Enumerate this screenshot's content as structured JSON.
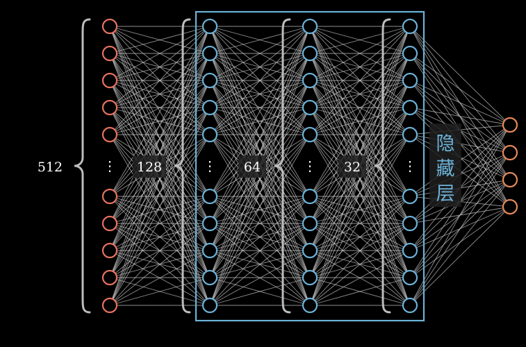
{
  "diagram": {
    "input_layer_size_label": "512",
    "hidden_layer_labels": [
      "128",
      "64",
      "32"
    ],
    "hidden_box_label": [
      "隐",
      "藏",
      "层"
    ],
    "ellipsis": "⋮",
    "colors": {
      "background": "#000000",
      "input_node": "#e8735f",
      "hidden_node": "#6cb2d8",
      "output_node": "#e8895a",
      "edge": "#cfcfcf",
      "brace": "#bdbdbd",
      "box": "#6cb2d8",
      "label_bg": "#1e1e1e"
    }
  }
}
